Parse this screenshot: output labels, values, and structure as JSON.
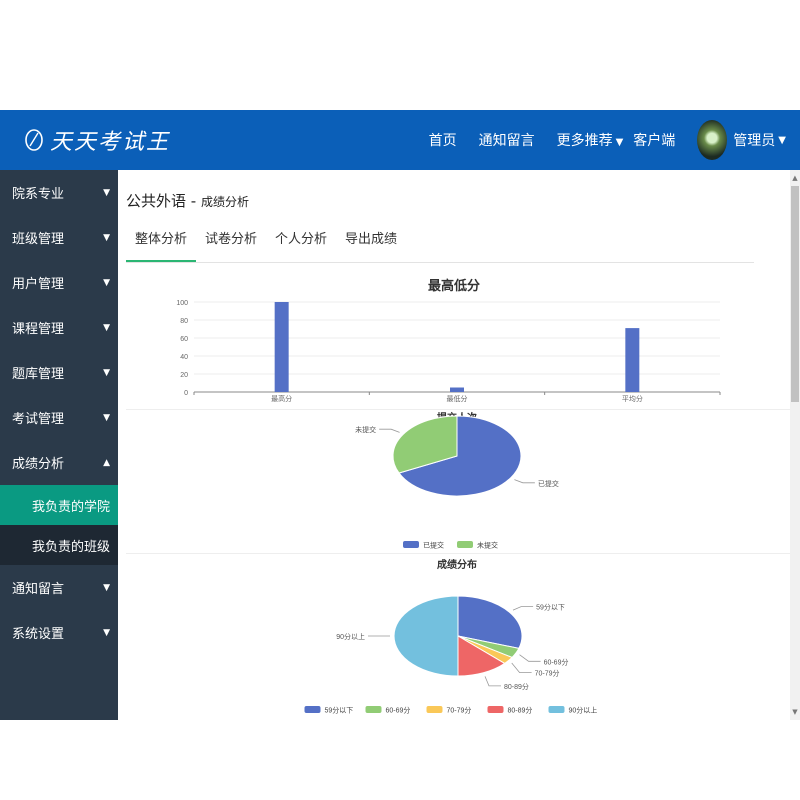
{
  "header": {
    "logo_text": "天天考试王",
    "nav": [
      {
        "label": "首页",
        "caret": false
      },
      {
        "label": "通知留言",
        "caret": false
      },
      {
        "label": "更多推荐",
        "caret": true
      },
      {
        "label": "客户端",
        "caret": false
      }
    ],
    "user_label": "管理员",
    "colors": {
      "bar": "#0b5fb8"
    }
  },
  "sidebar": {
    "items": [
      {
        "label": "院系专业",
        "arrow": "▼"
      },
      {
        "label": "班级管理",
        "arrow": "▼"
      },
      {
        "label": "用户管理",
        "arrow": "▼"
      },
      {
        "label": "课程管理",
        "arrow": "▼"
      },
      {
        "label": "题库管理",
        "arrow": "▼"
      },
      {
        "label": "考试管理",
        "arrow": "▼"
      },
      {
        "label": "成绩分析",
        "arrow": "▲"
      }
    ],
    "subitems": [
      {
        "label": "我负责的学院",
        "active": true
      },
      {
        "label": "我负责的班级",
        "active": false
      }
    ],
    "items_after": [
      {
        "label": "通知留言",
        "arrow": "▼"
      },
      {
        "label": "系统设置",
        "arrow": "▼"
      }
    ]
  },
  "main": {
    "title": "公共外语 - ",
    "subtitle": "成绩分析",
    "tabs": [
      "整体分析",
      "试卷分析",
      "个人分析",
      "导出成绩"
    ],
    "active_tab": 0
  },
  "chart_data": [
    {
      "type": "bar",
      "title": "最高低分",
      "categories": [
        "最高分",
        "最低分",
        "平均分"
      ],
      "values": [
        100,
        5,
        71
      ],
      "ylim": [
        0,
        100
      ],
      "yticks": [
        0,
        20,
        40,
        60,
        80,
        100
      ],
      "grid": true,
      "color": "#5470c6"
    },
    {
      "type": "pie",
      "title": "提交人次",
      "slices": [
        {
          "label": "已提交",
          "value": 68,
          "color": "#5470c6"
        },
        {
          "label": "未提交",
          "value": 32,
          "color": "#91cc75"
        }
      ],
      "legend": "bottom"
    },
    {
      "type": "pie",
      "title": "成绩分布",
      "slices": [
        {
          "label": "59分以下",
          "value": 30,
          "color": "#5470c6"
        },
        {
          "label": "60-69分",
          "value": 4,
          "color": "#91cc75"
        },
        {
          "label": "70-79分",
          "value": 3,
          "color": "#fac858"
        },
        {
          "label": "80-89分",
          "value": 13,
          "color": "#ee6666"
        },
        {
          "label": "90分以上",
          "value": 50,
          "color": "#73c0de"
        }
      ],
      "legend": "bottom"
    }
  ]
}
